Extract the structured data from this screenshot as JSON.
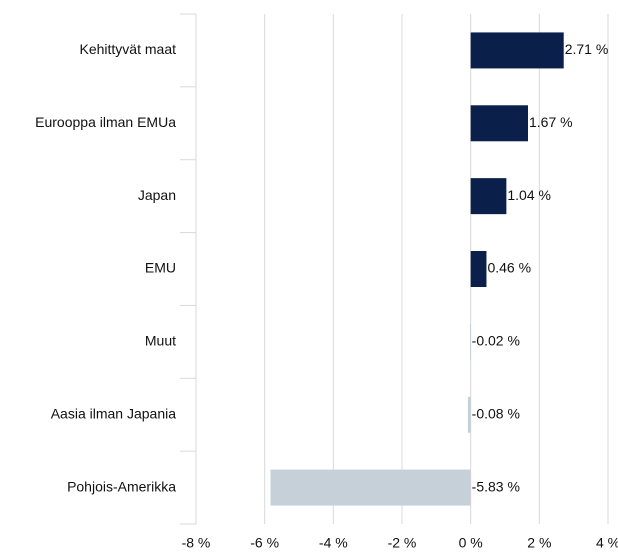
{
  "chart_data": {
    "type": "bar",
    "orientation": "horizontal",
    "categories": [
      "Kehittyvät maat",
      "Eurooppa ilman EMUa",
      "Japan",
      "EMU",
      "Muut",
      "Aasia ilman Japania",
      "Pohjois-Amerikka"
    ],
    "values": [
      2.71,
      1.67,
      1.04,
      0.46,
      -0.02,
      -0.08,
      -5.83
    ],
    "value_labels": [
      "2.71 %",
      "1.67 %",
      "1.04 %",
      "0.46 %",
      "-0.02 %",
      "-0.08 %",
      "-5.83 %"
    ],
    "colors": [
      "#0b1f4b",
      "#0b1f4b",
      "#0b1f4b",
      "#0b1f4b",
      "#c5d0d8",
      "#c5d0d8",
      "#c5d0d8"
    ],
    "xlim": [
      -8,
      4
    ],
    "xticks": [
      {
        "value": -8,
        "label": "-8 %"
      },
      {
        "value": -6,
        "label": "-6 %"
      },
      {
        "value": -4,
        "label": "-4 %"
      },
      {
        "value": -2,
        "label": "-2 %"
      },
      {
        "value": 0,
        "label": "0 %"
      },
      {
        "value": 2,
        "label": "2 %"
      },
      {
        "value": 4,
        "label": "4 %"
      }
    ],
    "grid": true
  }
}
